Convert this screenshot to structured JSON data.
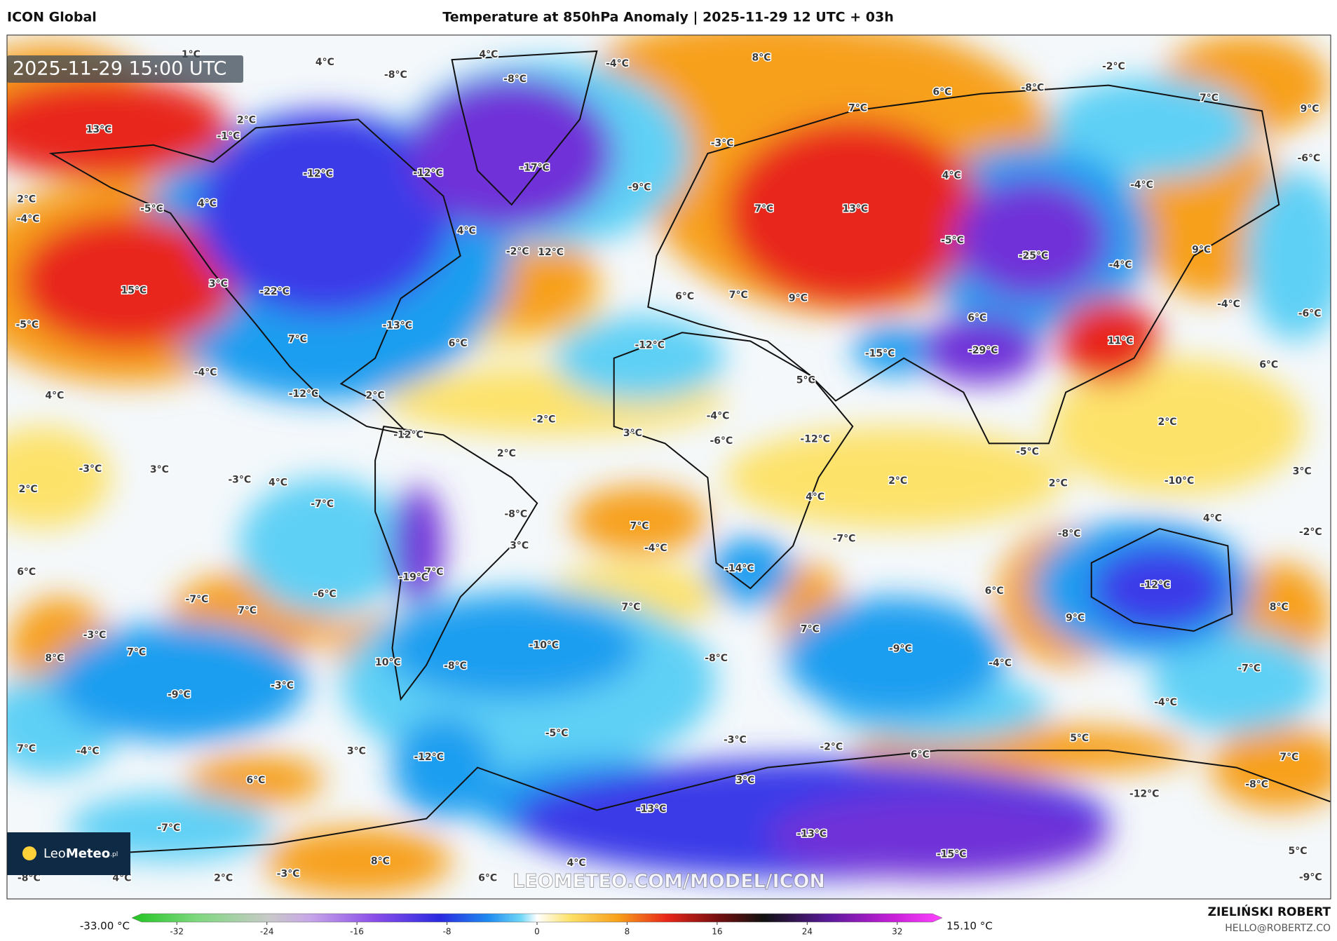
{
  "header": {
    "model": "ICON Global",
    "title": "Temperature at 850hPa Anomaly | 2025-11-29 12 UTC + 03h"
  },
  "map": {
    "timestamp": "2025-11-29 15:00 UTC",
    "watermark": "LEOMETEO.COM/MODEL/ICON",
    "logo_light": "Leo",
    "logo_bold": "Meteo",
    "logo_domain": ".pl",
    "labels": [
      "1°C",
      "4°C",
      "4°C",
      "-8°C",
      "-8°C",
      "-4°C",
      "8°C",
      "-2°C",
      "6°C",
      "7°C",
      "7°C",
      "9°C",
      "-8°C",
      "13°C",
      "2°C",
      "-1°C",
      "-12°C",
      "-12°C",
      "-17°C",
      "-9°C",
      "-3°C",
      "4°C",
      "-6°C",
      "-4°C",
      "2°C",
      "-4°C",
      "-5°C",
      "4°C",
      "4°C",
      "13°C",
      "7°C",
      "-2°C",
      "12°C",
      "-5°C",
      "-25°C",
      "-4°C",
      "9°C",
      "3°C",
      "15°C",
      "-22°C",
      "-13°C",
      "6°C",
      "7°C",
      "9°C",
      "6°C",
      "-4°C",
      "-6°C",
      "-5°C",
      "7°C",
      "6°C",
      "-12°C",
      "-15°C",
      "-29°C",
      "11°C",
      "-4°C",
      "6°C",
      "5°C",
      "4°C",
      "-12°C",
      "2°C",
      "-2°C",
      "-4°C",
      "2°C",
      "-12°C",
      "3°C",
      "-6°C",
      "-12°C",
      "2°C",
      "-5°C",
      "-3°C",
      "3°C",
      "-3°C",
      "4°C",
      "2°C",
      "2°C",
      "-10°C",
      "3°C",
      "2°C",
      "-7°C",
      "-8°C",
      "4°C",
      "-8°C",
      "4°C",
      "-2°C",
      "3°C",
      "7°C",
      "-4°C",
      "-7°C",
      "6°C",
      "-14°C",
      "7°C",
      "-19°C",
      "-7°C",
      "-6°C",
      "7°C",
      "7°C",
      "6°C",
      "-12°C",
      "9°C",
      "8°C",
      "-3°C",
      "7°C",
      "-10°C",
      "-9°C",
      "8°C",
      "7°C",
      "10°C",
      "-8°C",
      "-8°C",
      "-4°C",
      "-7°C",
      "-3°C",
      "-9°C",
      "-4°C",
      "-5°C",
      "-3°C",
      "5°C",
      "7°C",
      "-4°C",
      "3°C",
      "-12°C",
      "-2°C",
      "6°C",
      "7°C",
      "6°C",
      "3°C",
      "-8°C",
      "-12°C",
      "-13°C",
      "-7°C",
      "-13°C",
      "-15°C",
      "5°C",
      "8°C",
      "4°C",
      "-8°C",
      "4°C",
      "2°C",
      "-3°C",
      "6°C",
      "-9°C"
    ]
  },
  "colorbar": {
    "min_label": "-33.00 °C",
    "max_label": "15.10 °C",
    "range": [
      -36,
      36
    ],
    "ticks": [
      -32,
      -24,
      -16,
      -8,
      0,
      8,
      16,
      24,
      32
    ]
  },
  "footer": {
    "author": "ZIELIŃSKI ROBERT",
    "email": "HELLO@ROBERTZ.CO"
  }
}
